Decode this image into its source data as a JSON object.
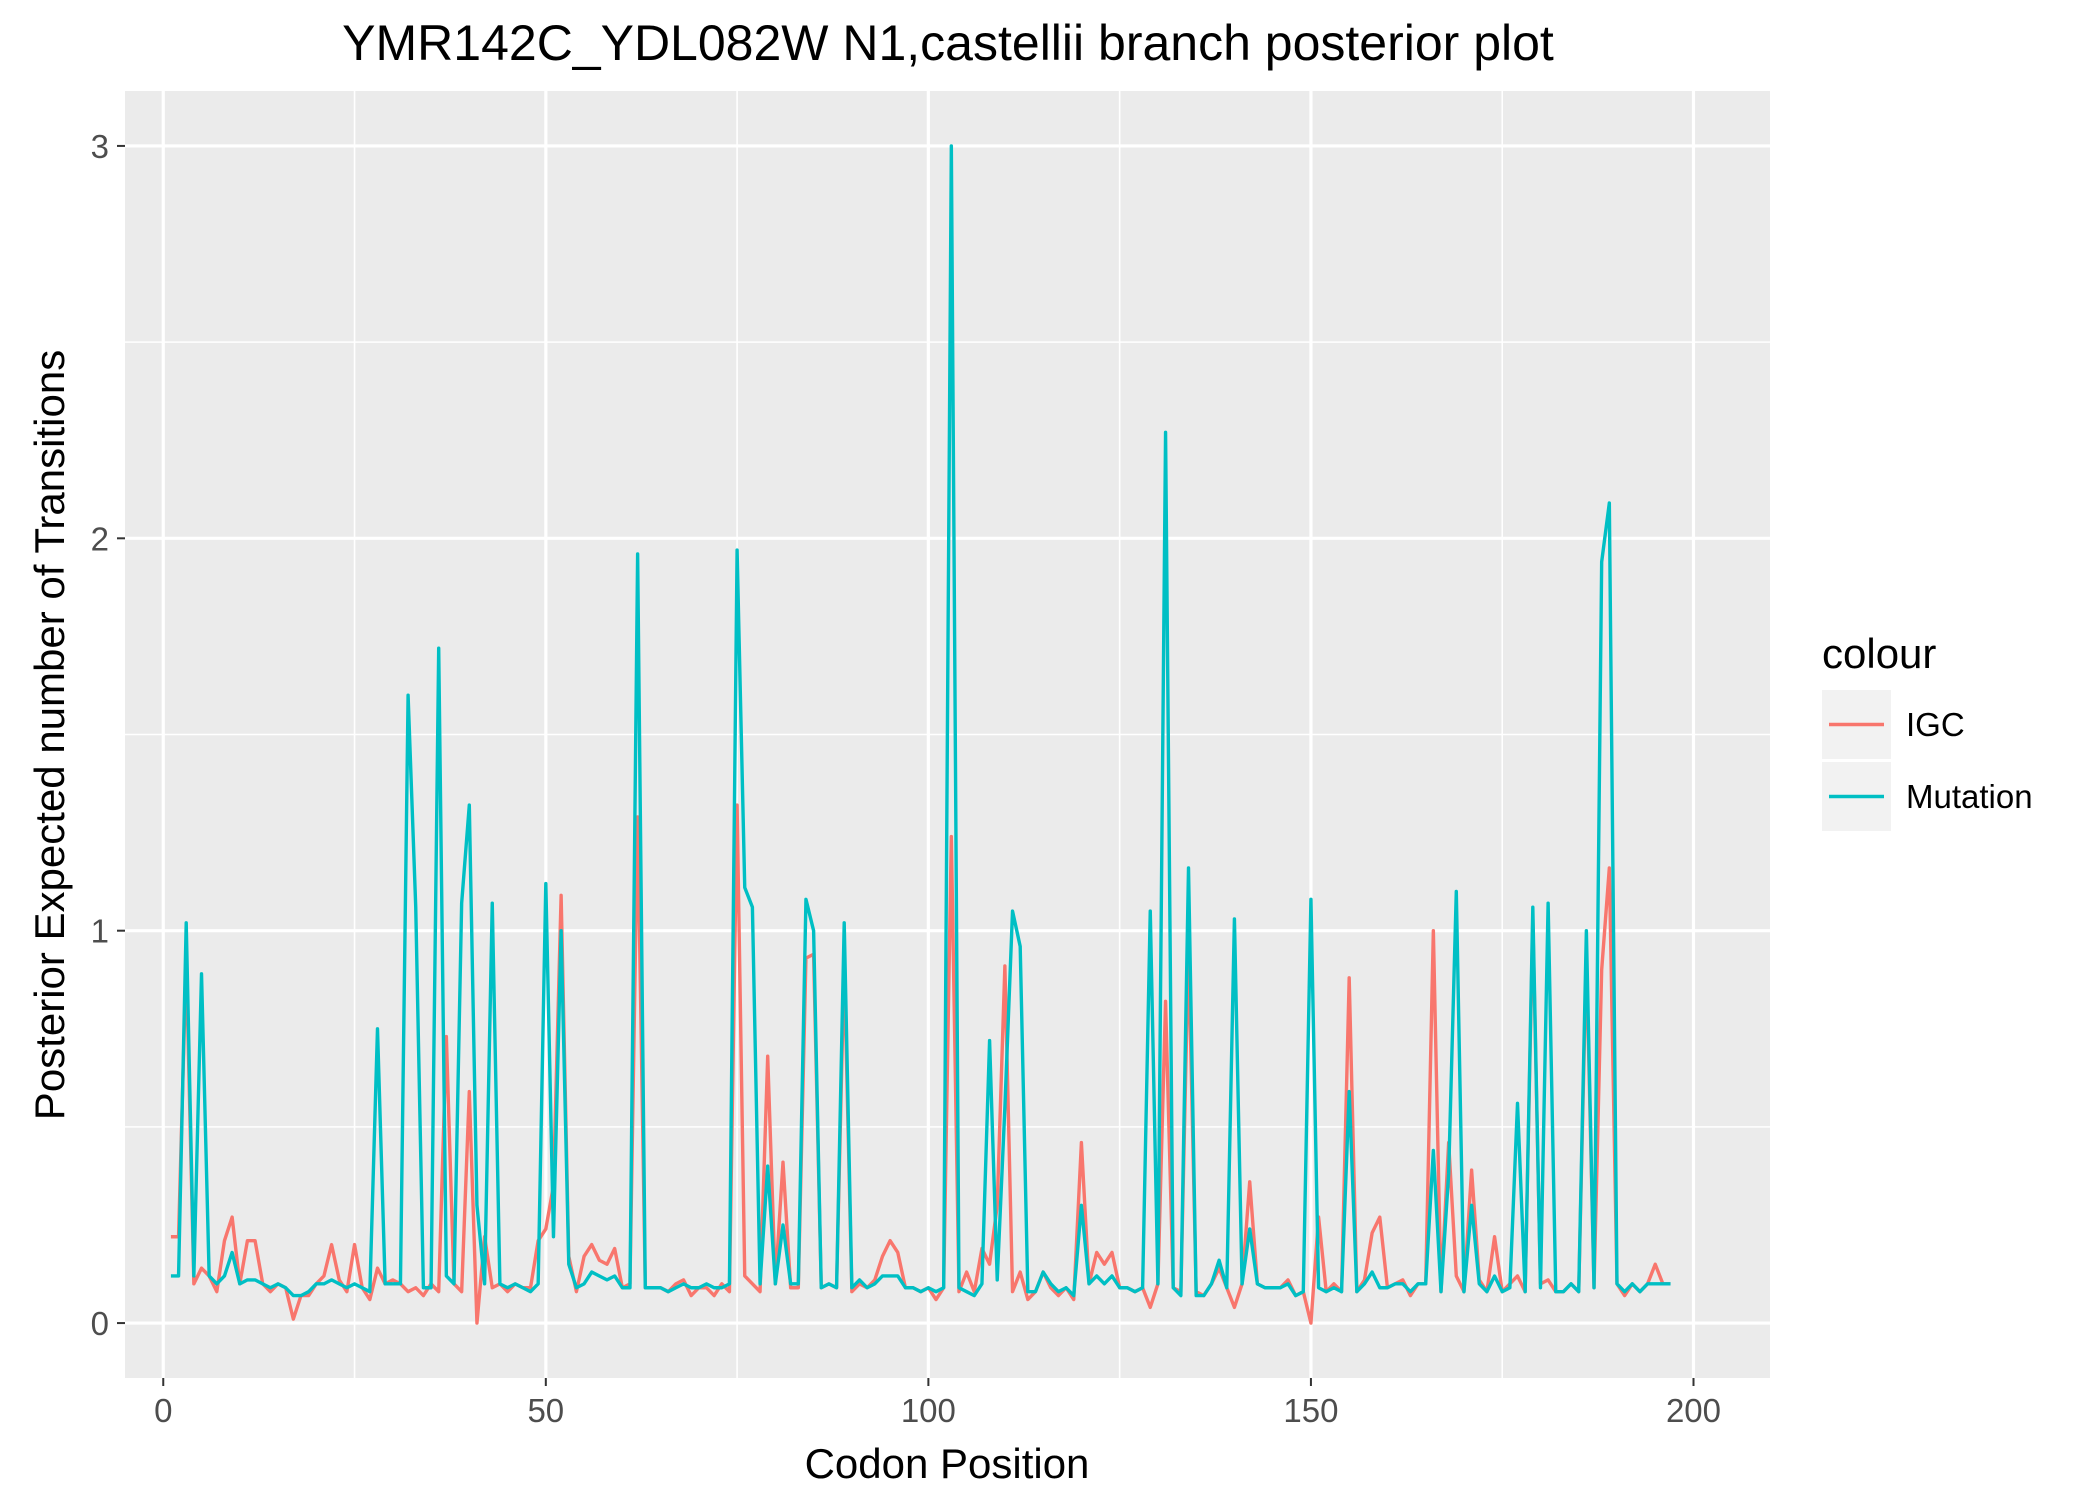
{
  "chart_data": {
    "type": "line",
    "title": "YMR142C_YDL082W N1,castellii branch posterior plot",
    "xlabel": "Codon Position",
    "ylabel": "Posterior Expected number of Transitions",
    "xlim": [
      -5,
      210
    ],
    "ylim": [
      -0.14,
      3.14
    ],
    "x_ticks": [
      0,
      50,
      100,
      150,
      200
    ],
    "x_tick_labels": [
      "0",
      "50",
      "100",
      "150",
      "200"
    ],
    "y_ticks": [
      0,
      1,
      2,
      3
    ],
    "y_tick_labels": [
      "0",
      "1",
      "2",
      "3"
    ],
    "grid": true,
    "legend": {
      "title": "colour",
      "position": "right",
      "entries": [
        "IGC",
        "Mutation"
      ]
    },
    "x": [
      1,
      2,
      3,
      4,
      5,
      6,
      7,
      8,
      9,
      10,
      11,
      12,
      13,
      14,
      15,
      16,
      17,
      18,
      19,
      20,
      21,
      22,
      23,
      24,
      25,
      26,
      27,
      28,
      29,
      30,
      31,
      32,
      33,
      34,
      35,
      36,
      37,
      38,
      39,
      40,
      41,
      42,
      43,
      44,
      45,
      46,
      47,
      48,
      49,
      50,
      51,
      52,
      53,
      54,
      55,
      56,
      57,
      58,
      59,
      60,
      61,
      62,
      63,
      64,
      65,
      66,
      67,
      68,
      69,
      70,
      71,
      72,
      73,
      74,
      75,
      76,
      77,
      78,
      79,
      80,
      81,
      82,
      83,
      84,
      85,
      86,
      87,
      88,
      89,
      90,
      91,
      92,
      93,
      94,
      95,
      96,
      97,
      98,
      99,
      100,
      101,
      102,
      103,
      104,
      105,
      106,
      107,
      108,
      109,
      110,
      111,
      112,
      113,
      114,
      115,
      116,
      117,
      118,
      119,
      120,
      121,
      122,
      123,
      124,
      125,
      126,
      127,
      128,
      129,
      130,
      131,
      132,
      133,
      134,
      135,
      136,
      137,
      138,
      139,
      140,
      141,
      142,
      143,
      144,
      145,
      146,
      147,
      148,
      149,
      150,
      151,
      152,
      153,
      154,
      155,
      156,
      157,
      158,
      159,
      160,
      161,
      162,
      163,
      164,
      165,
      166,
      167,
      168,
      169,
      170,
      171,
      172,
      173,
      174,
      175,
      176,
      177,
      178,
      179,
      180,
      181,
      182,
      183,
      184,
      185,
      186,
      187,
      188,
      189,
      190,
      191,
      192,
      193,
      194,
      195,
      196,
      197
    ],
    "series": [
      {
        "name": "IGC",
        "color": "#F8766D",
        "values": [
          0.22,
          0.22,
          0.93,
          0.1,
          0.14,
          0.12,
          0.08,
          0.21,
          0.27,
          0.1,
          0.21,
          0.21,
          0.1,
          0.08,
          0.1,
          0.09,
          0.01,
          0.07,
          0.07,
          0.1,
          0.12,
          0.2,
          0.11,
          0.08,
          0.2,
          0.09,
          0.06,
          0.14,
          0.1,
          0.11,
          0.1,
          0.08,
          0.09,
          0.07,
          0.1,
          0.08,
          0.73,
          0.1,
          0.08,
          0.59,
          0.0,
          0.22,
          0.09,
          0.1,
          0.08,
          0.1,
          0.09,
          0.09,
          0.21,
          0.24,
          0.35,
          1.09,
          0.17,
          0.08,
          0.17,
          0.2,
          0.16,
          0.15,
          0.19,
          0.09,
          0.1,
          1.29,
          0.09,
          0.09,
          0.09,
          0.08,
          0.1,
          0.11,
          0.07,
          0.09,
          0.09,
          0.07,
          0.1,
          0.08,
          1.32,
          0.12,
          0.1,
          0.08,
          0.68,
          0.1,
          0.41,
          0.09,
          0.09,
          0.93,
          0.94,
          0.09,
          0.1,
          0.09,
          0.92,
          0.08,
          0.1,
          0.09,
          0.11,
          0.17,
          0.21,
          0.18,
          0.09,
          0.09,
          0.08,
          0.09,
          0.06,
          0.09,
          1.24,
          0.08,
          0.13,
          0.08,
          0.19,
          0.15,
          0.3,
          0.91,
          0.08,
          0.13,
          0.06,
          0.08,
          0.13,
          0.09,
          0.07,
          0.09,
          0.06,
          0.46,
          0.1,
          0.18,
          0.15,
          0.18,
          0.09,
          0.09,
          0.08,
          0.09,
          0.04,
          0.1,
          0.82,
          0.09,
          0.08,
          0.96,
          0.08,
          0.07,
          0.1,
          0.14,
          0.09,
          0.04,
          0.1,
          0.36,
          0.1,
          0.09,
          0.09,
          0.09,
          0.11,
          0.07,
          0.08,
          0.0,
          0.27,
          0.08,
          0.1,
          0.08,
          0.88,
          0.08,
          0.11,
          0.23,
          0.27,
          0.09,
          0.1,
          0.11,
          0.07,
          0.1,
          0.1,
          1.0,
          0.08,
          0.46,
          0.12,
          0.08,
          0.39,
          0.11,
          0.08,
          0.22,
          0.08,
          0.1,
          0.12,
          0.08,
          1.03,
          0.1,
          0.11,
          0.08,
          0.08,
          0.1,
          0.08,
          0.94,
          0.09,
          0.9,
          1.16,
          0.1,
          0.07,
          0.1,
          0.08,
          0.1,
          0.15,
          0.1,
          0.1
        ]
      },
      {
        "name": "Mutation",
        "color": "#00BFC4",
        "values": [
          0.12,
          0.12,
          1.02,
          0.12,
          0.89,
          0.12,
          0.1,
          0.12,
          0.18,
          0.1,
          0.11,
          0.11,
          0.1,
          0.09,
          0.1,
          0.09,
          0.07,
          0.07,
          0.08,
          0.1,
          0.1,
          0.11,
          0.1,
          0.09,
          0.1,
          0.09,
          0.08,
          0.75,
          0.1,
          0.1,
          0.1,
          1.6,
          1.06,
          0.09,
          0.09,
          1.72,
          0.12,
          0.1,
          1.07,
          1.32,
          0.3,
          0.1,
          1.07,
          0.1,
          0.09,
          0.1,
          0.09,
          0.08,
          0.1,
          1.12,
          0.22,
          1.0,
          0.15,
          0.09,
          0.1,
          0.13,
          0.12,
          0.11,
          0.12,
          0.09,
          0.09,
          1.96,
          0.09,
          0.09,
          0.09,
          0.08,
          0.09,
          0.1,
          0.09,
          0.09,
          0.1,
          0.09,
          0.09,
          0.1,
          1.97,
          1.11,
          1.06,
          0.1,
          0.4,
          0.1,
          0.25,
          0.1,
          0.1,
          1.08,
          1.0,
          0.09,
          0.1,
          0.09,
          1.02,
          0.09,
          0.11,
          0.09,
          0.1,
          0.12,
          0.12,
          0.12,
          0.09,
          0.09,
          0.08,
          0.09,
          0.08,
          0.09,
          3.0,
          0.09,
          0.08,
          0.07,
          0.1,
          0.72,
          0.11,
          0.55,
          1.05,
          0.96,
          0.08,
          0.08,
          0.13,
          0.1,
          0.08,
          0.09,
          0.07,
          0.3,
          0.1,
          0.12,
          0.1,
          0.12,
          0.09,
          0.09,
          0.08,
          0.09,
          1.05,
          0.1,
          2.27,
          0.09,
          0.07,
          1.16,
          0.07,
          0.07,
          0.1,
          0.16,
          0.09,
          1.03,
          0.1,
          0.24,
          0.1,
          0.09,
          0.09,
          0.09,
          0.1,
          0.07,
          0.08,
          1.08,
          0.09,
          0.08,
          0.09,
          0.08,
          0.59,
          0.08,
          0.1,
          0.13,
          0.09,
          0.09,
          0.1,
          0.1,
          0.08,
          0.1,
          0.1,
          0.44,
          0.08,
          0.38,
          1.1,
          0.08,
          0.3,
          0.1,
          0.08,
          0.12,
          0.08,
          0.09,
          0.56,
          0.08,
          1.06,
          0.09,
          1.07,
          0.08,
          0.08,
          0.1,
          0.08,
          1.0,
          0.09,
          1.94,
          2.09,
          0.1,
          0.08,
          0.1,
          0.08,
          0.1,
          0.1,
          0.1,
          0.1
        ]
      }
    ]
  }
}
